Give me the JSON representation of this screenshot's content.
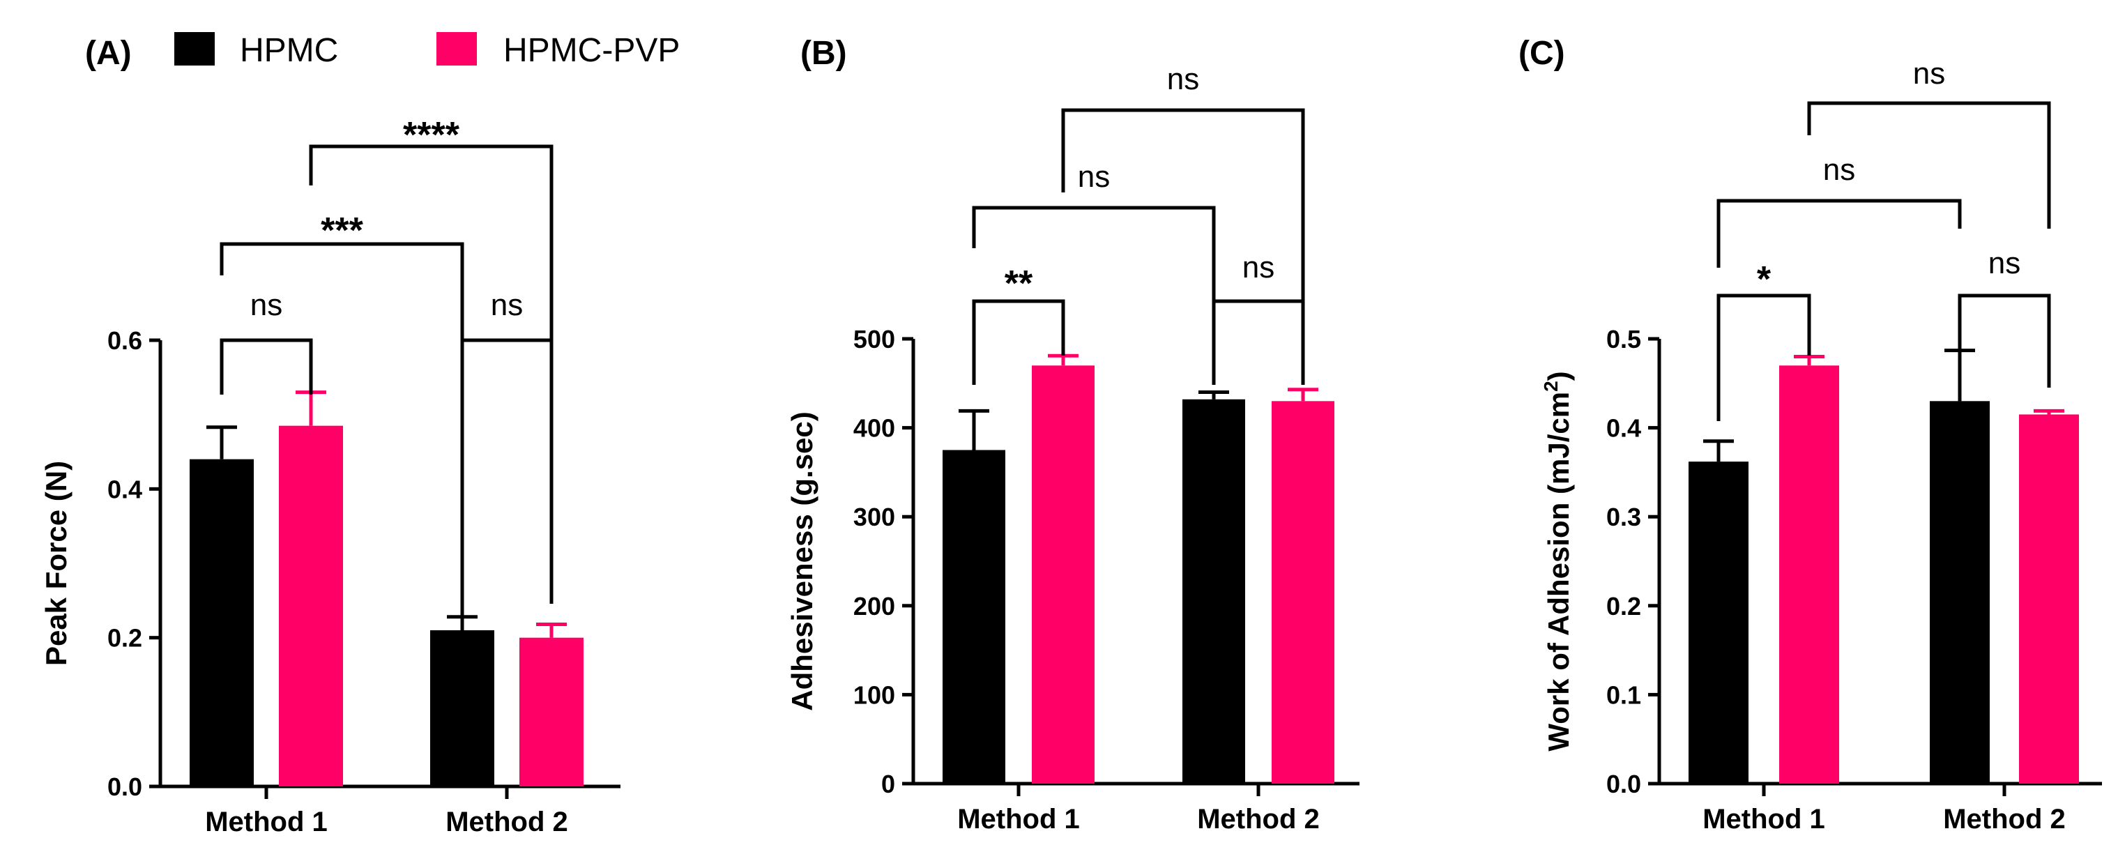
{
  "legend": {
    "items": [
      {
        "label": "HPMC",
        "color": "#000000"
      },
      {
        "label": "HPMC-PVP",
        "color": "#ff0066"
      }
    ]
  },
  "chart_data": [
    {
      "panel": "(A)",
      "type": "bar",
      "ylabel": "Peak  Force (N)",
      "ylim": [
        0,
        0.6
      ],
      "yticks": [
        "0.0",
        "0.2",
        "0.4",
        "0.6"
      ],
      "ytick_values": [
        0,
        0.2,
        0.4,
        0.6
      ],
      "categories": [
        "Method 1",
        "Method 2"
      ],
      "series": [
        {
          "name": "HPMC",
          "values": [
            0.44,
            0.21
          ],
          "errors": [
            0.043,
            0.018
          ]
        },
        {
          "name": "HPMC-PVP",
          "values": [
            0.485,
            0.2
          ],
          "errors": [
            0.045,
            0.018
          ]
        }
      ],
      "comparisons": [
        {
          "label": "ns",
          "from": "Method 1 HPMC",
          "to": "Method 1 HPMC-PVP"
        },
        {
          "label": "ns",
          "from": "Method 2 HPMC",
          "to": "Method 2 HPMC-PVP"
        },
        {
          "label": "***",
          "from": "Method 1 HPMC",
          "to": "Method 2 HPMC"
        },
        {
          "label": "****",
          "from": "Method 1 HPMC-PVP",
          "to": "Method 2 HPMC-PVP"
        }
      ]
    },
    {
      "panel": "(B)",
      "type": "bar",
      "ylabel": "Adhesiveness  (g.sec)",
      "ylim": [
        0,
        500
      ],
      "yticks": [
        "0",
        "100",
        "200",
        "300",
        "400",
        "500"
      ],
      "ytick_values": [
        0,
        100,
        200,
        300,
        400,
        500
      ],
      "categories": [
        "Method 1",
        "Method 2"
      ],
      "series": [
        {
          "name": "HPMC",
          "values": [
            375,
            432
          ],
          "errors": [
            44,
            8
          ]
        },
        {
          "name": "HPMC-PVP",
          "values": [
            470,
            430
          ],
          "errors": [
            11,
            13
          ]
        }
      ],
      "comparisons": [
        {
          "label": "**",
          "from": "Method 1 HPMC",
          "to": "Method 1 HPMC-PVP"
        },
        {
          "label": "ns",
          "from": "Method 2 HPMC",
          "to": "Method 2 HPMC-PVP"
        },
        {
          "label": "ns",
          "from": "Method 1 HPMC",
          "to": "Method 2 HPMC"
        },
        {
          "label": "ns",
          "from": "Method 1 HPMC-PVP",
          "to": "Method 2 HPMC-PVP"
        }
      ]
    },
    {
      "panel": "(C)",
      "type": "bar",
      "ylabel": "Work of Adhesion (mJ/cm",
      "ylabel_sup": "2",
      "ylabel_end": ")",
      "ylim": [
        0,
        0.5
      ],
      "yticks": [
        "0.0",
        "0.1",
        "0.2",
        "0.3",
        "0.4",
        "0.5"
      ],
      "ytick_values": [
        0,
        0.1,
        0.2,
        0.3,
        0.4,
        0.5
      ],
      "categories": [
        "Method 1",
        "Method 2"
      ],
      "series": [
        {
          "name": "HPMC",
          "values": [
            0.362,
            0.43
          ],
          "errors": [
            0.023,
            0.057
          ]
        },
        {
          "name": "HPMC-PVP",
          "values": [
            0.47,
            0.415
          ],
          "errors": [
            0.01,
            0.004
          ]
        }
      ],
      "comparisons": [
        {
          "label": "*",
          "from": "Method 1 HPMC",
          "to": "Method 1 HPMC-PVP"
        },
        {
          "label": "ns",
          "from": "Method 2 HPMC",
          "to": "Method 2 HPMC-PVP"
        },
        {
          "label": "ns",
          "from": "Method 1 HPMC",
          "to": "Method 2 HPMC"
        },
        {
          "label": "ns",
          "from": "Method 1 HPMC-PVP",
          "to": "Method 2 HPMC-PVP"
        }
      ]
    }
  ]
}
